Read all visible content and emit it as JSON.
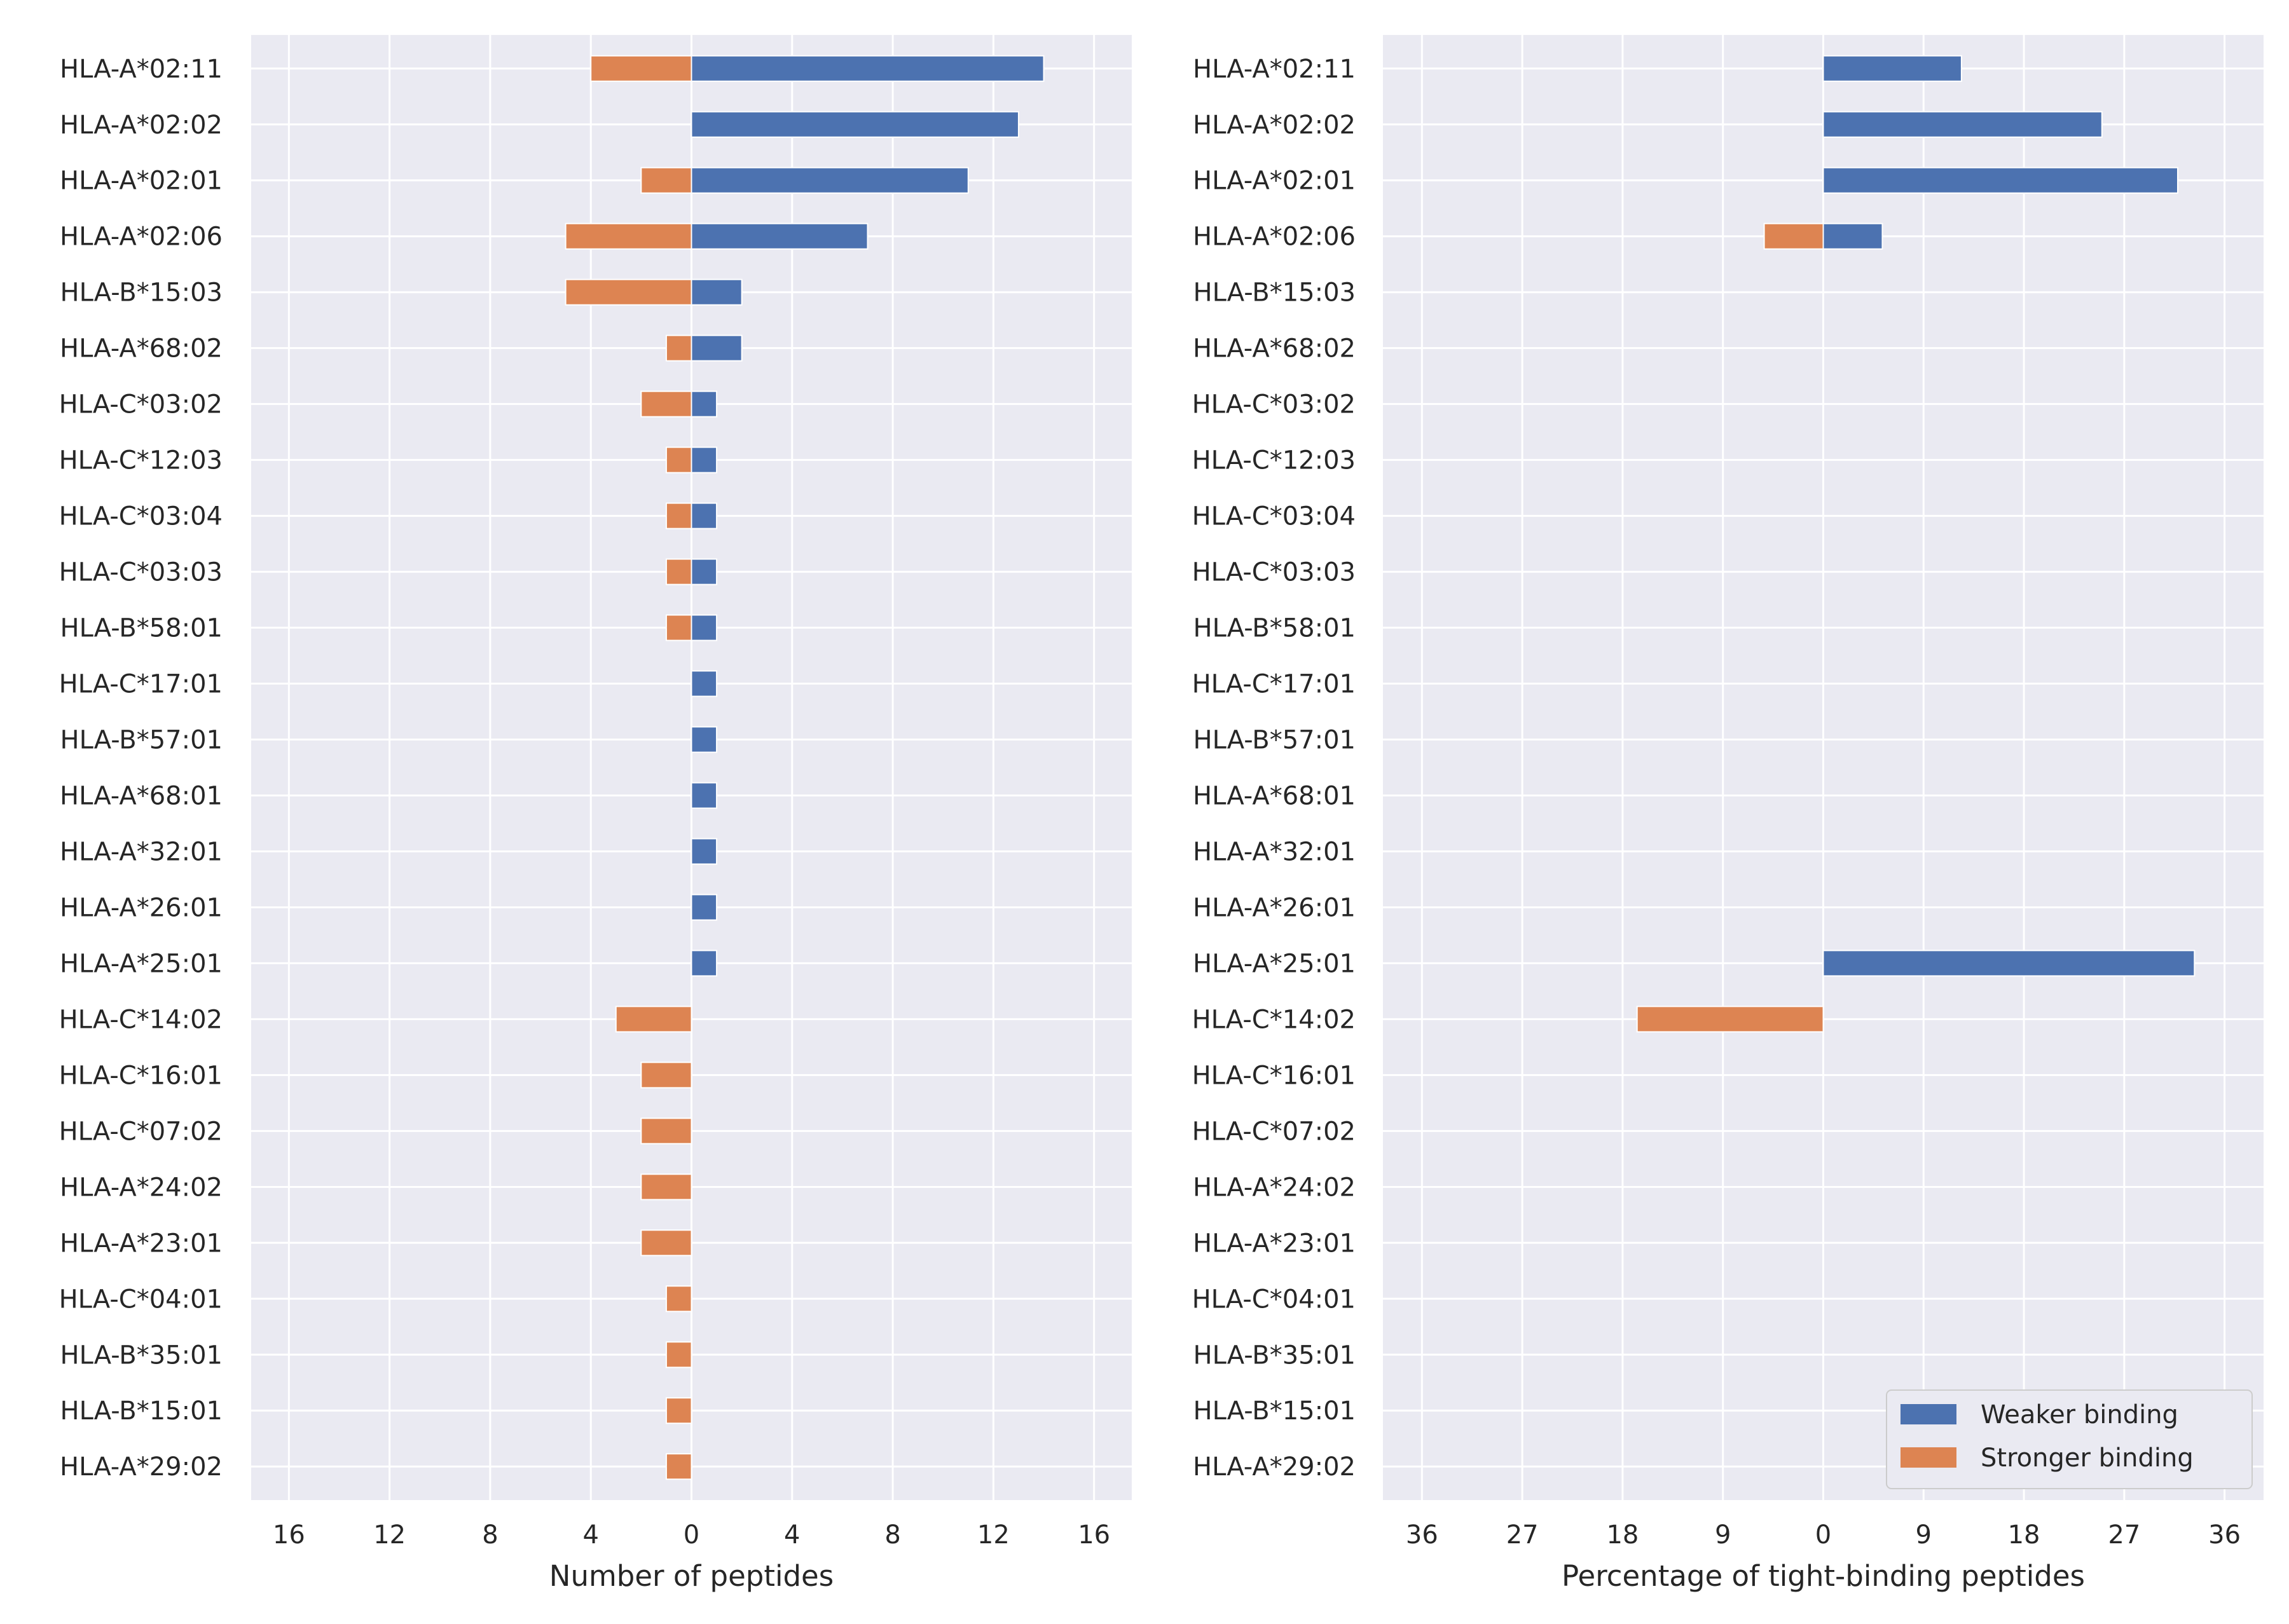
{
  "chart_data": [
    {
      "type": "bar",
      "orientation": "horizontal",
      "categories": [
        "HLA-A*02:11",
        "HLA-A*02:02",
        "HLA-A*02:01",
        "HLA-A*02:06",
        "HLA-B*15:03",
        "HLA-A*68:02",
        "HLA-C*03:02",
        "HLA-C*12:03",
        "HLA-C*03:04",
        "HLA-C*03:03",
        "HLA-B*58:01",
        "HLA-C*17:01",
        "HLA-B*57:01",
        "HLA-A*68:01",
        "HLA-A*32:01",
        "HLA-A*26:01",
        "HLA-A*25:01",
        "HLA-C*14:02",
        "HLA-C*16:01",
        "HLA-C*07:02",
        "HLA-A*24:02",
        "HLA-A*23:01",
        "HLA-C*04:01",
        "HLA-B*35:01",
        "HLA-B*15:01",
        "HLA-A*29:02"
      ],
      "series": [
        {
          "name": "Weaker binding",
          "color": "#4c72b0",
          "values": [
            14,
            13,
            11,
            7,
            2,
            2,
            1,
            1,
            1,
            1,
            1,
            1,
            1,
            1,
            1,
            1,
            1,
            0,
            0,
            0,
            0,
            0,
            0,
            0,
            0,
            0
          ]
        },
        {
          "name": "Stronger binding",
          "color": "#dd8452",
          "values": [
            4,
            0,
            2,
            5,
            5,
            1,
            2,
            1,
            1,
            1,
            1,
            0,
            0,
            0,
            0,
            0,
            0,
            3,
            2,
            2,
            2,
            2,
            1,
            1,
            1,
            1
          ]
        }
      ],
      "xlabel": "Number of peptides",
      "ylabel": "",
      "xlim": [
        -17.5,
        17.5
      ],
      "xticks": [
        -16,
        -12,
        -8,
        -4,
        0,
        4,
        8,
        12,
        16
      ],
      "xtick_labels": [
        "16",
        "12",
        "8",
        "4",
        "0",
        "4",
        "8",
        "12",
        "16"
      ],
      "grid": true,
      "legend": false
    },
    {
      "type": "bar",
      "orientation": "horizontal",
      "categories": [
        "HLA-A*02:11",
        "HLA-A*02:02",
        "HLA-A*02:01",
        "HLA-A*02:06",
        "HLA-B*15:03",
        "HLA-A*68:02",
        "HLA-C*03:02",
        "HLA-C*12:03",
        "HLA-C*03:04",
        "HLA-C*03:03",
        "HLA-B*58:01",
        "HLA-C*17:01",
        "HLA-B*57:01",
        "HLA-A*68:01",
        "HLA-A*32:01",
        "HLA-A*26:01",
        "HLA-A*25:01",
        "HLA-C*14:02",
        "HLA-C*16:01",
        "HLA-C*07:02",
        "HLA-A*24:02",
        "HLA-A*23:01",
        "HLA-C*04:01",
        "HLA-B*35:01",
        "HLA-B*15:01",
        "HLA-A*29:02"
      ],
      "series": [
        {
          "name": "Weaker binding",
          "color": "#4c72b0",
          "values": [
            12.4,
            25,
            31.8,
            5.3,
            0,
            0,
            0,
            0,
            0,
            0,
            0,
            0,
            0,
            0,
            0,
            0,
            33.3,
            0,
            0,
            0,
            0,
            0,
            0,
            0,
            0,
            0
          ]
        },
        {
          "name": "Stronger binding",
          "color": "#dd8452",
          "values": [
            0,
            0,
            0,
            5.3,
            0,
            0,
            0,
            0,
            0,
            0,
            0,
            0,
            0,
            0,
            0,
            0,
            0,
            16.7,
            0,
            0,
            0,
            0,
            0,
            0,
            0,
            0
          ]
        }
      ],
      "xlabel": "Percentage of tight-binding peptides",
      "ylabel": "",
      "xlim": [
        -39.5,
        39.5
      ],
      "xticks": [
        -36,
        -27,
        -18,
        -9,
        0,
        9,
        18,
        27,
        36
      ],
      "xtick_labels": [
        "36",
        "27",
        "18",
        "9",
        "0",
        "9",
        "18",
        "27",
        "36"
      ],
      "grid": true,
      "legend": true,
      "legend_position": "lower-right",
      "legend_entries": [
        "Weaker binding",
        "Stronger binding"
      ]
    }
  ]
}
